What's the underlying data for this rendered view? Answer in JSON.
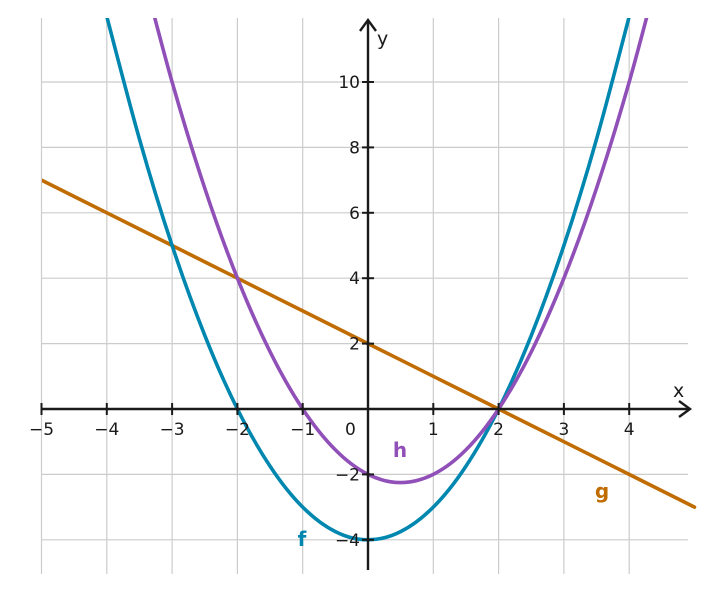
{
  "chart_data": {
    "type": "line",
    "title": "",
    "xlabel": "x",
    "ylabel": "y",
    "xlim": [
      -5,
      5
    ],
    "ylim": [
      -5,
      12
    ],
    "x_ticks": [
      -5,
      -4,
      -3,
      -2,
      -1,
      1,
      2,
      3,
      4
    ],
    "y_ticks": [
      -4,
      -2,
      2,
      4,
      6,
      8,
      10
    ],
    "x_tick_labels": [
      "−5",
      "−4",
      "−3",
      "−2",
      "−1",
      "1",
      "2",
      "3",
      "4"
    ],
    "y_tick_labels": [
      "−4",
      "−2",
      "2",
      "4",
      "6",
      "8",
      "10"
    ],
    "origin_label": "0",
    "grid": true,
    "series": [
      {
        "name": "f",
        "color": "#0087b0",
        "x": [
          -4,
          -3.5,
          -3,
          -2.5,
          -2,
          -1.5,
          -1,
          -0.5,
          0,
          0.5,
          1,
          1.5,
          2,
          2.5,
          3,
          3.5,
          4
        ],
        "y": [
          12,
          8.25,
          5,
          2.25,
          0,
          -1.75,
          -3,
          -3.75,
          -4,
          -3.75,
          -3,
          -1.75,
          0,
          2.25,
          5,
          8.25,
          12
        ]
      },
      {
        "name": "g",
        "color": "#c06c00",
        "x": [
          -5,
          -4,
          -3,
          -2,
          -1,
          0,
          1,
          2,
          3,
          4,
          5
        ],
        "y": [
          7,
          6,
          5,
          4,
          3,
          2,
          1,
          0,
          -1,
          -2,
          -3
        ]
      },
      {
        "name": "h",
        "color": "#9050b8",
        "x": [
          -3.5,
          -3,
          -2.5,
          -2,
          -1.5,
          -1,
          -0.5,
          0,
          0.5,
          1,
          1.5,
          2,
          2.5,
          3,
          3.5,
          4,
          4.5
        ],
        "y": [
          13.75,
          10,
          6.75,
          4,
          1.75,
          0,
          -1.25,
          -2,
          -2.25,
          -2,
          -1.25,
          0,
          1.75,
          4,
          6.75,
          10,
          13.75
        ]
      }
    ]
  }
}
